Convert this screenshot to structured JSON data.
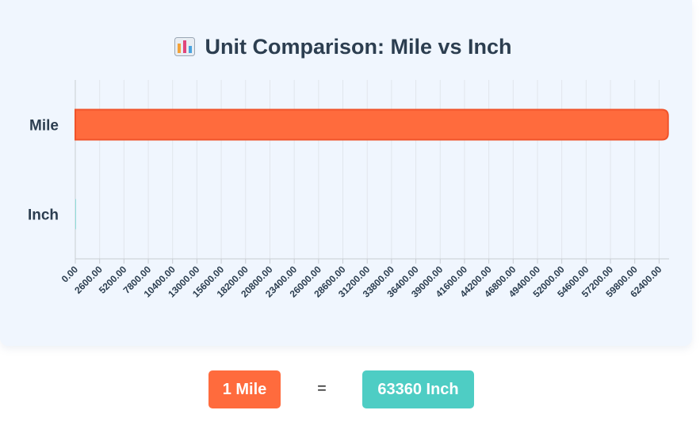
{
  "title": "Unit Comparison: Mile vs Inch",
  "title_icon": "bar-chart-emoji-icon",
  "colors": {
    "mile_bar": "#ff6b3d",
    "mile_bar_border": "#f0532a",
    "inch_bar": "#4ecdc4",
    "left_badge": "#ff6b3d",
    "right_badge": "#4ecdc4"
  },
  "chart_data": {
    "type": "bar",
    "orientation": "horizontal",
    "title": "Unit Comparison: Mile vs Inch",
    "categories": [
      "Mile",
      "Inch"
    ],
    "values": [
      63360,
      1
    ],
    "xlim": [
      0,
      63360
    ],
    "x_ticks": [
      "0.00",
      "2600.00",
      "5200.00",
      "7800.00",
      "10400.00",
      "13000.00",
      "15600.00",
      "18200.00",
      "20800.00",
      "23400.00",
      "26000.00",
      "28600.00",
      "31200.00",
      "33800.00",
      "36400.00",
      "39000.00",
      "41600.00",
      "44200.00",
      "46800.00",
      "49400.00",
      "52000.00",
      "54600.00",
      "57200.00",
      "59800.00",
      "62400.00"
    ],
    "grid": true,
    "legend": "none"
  },
  "comparison": {
    "left": "1 Mile",
    "equals": "=",
    "right": "63360 Inch"
  }
}
